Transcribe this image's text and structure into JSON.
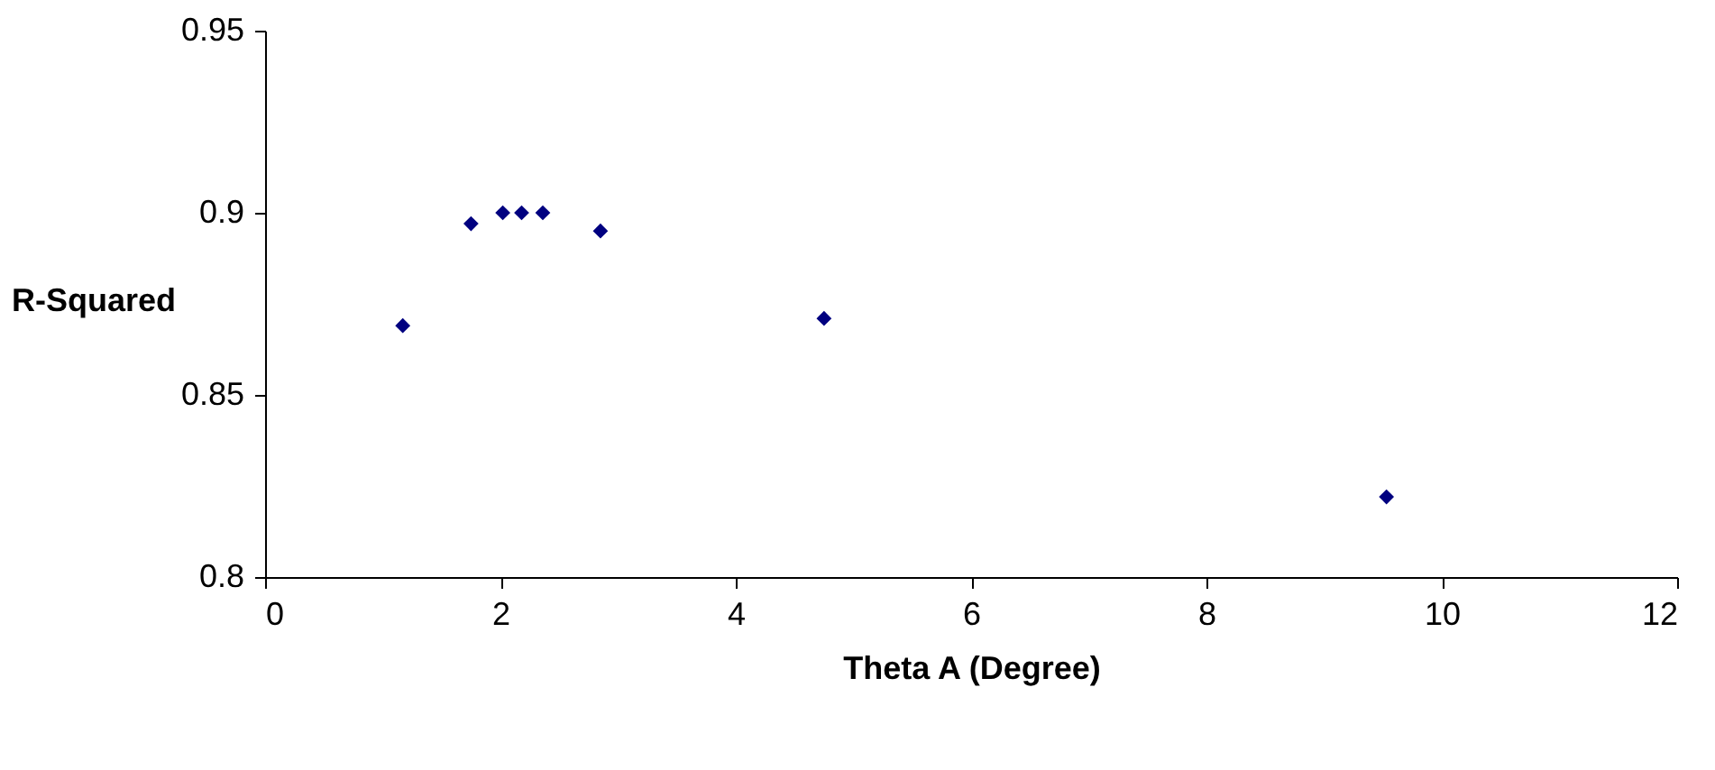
{
  "chart_data": {
    "type": "scatter",
    "xlabel": "Theta A (Degree)",
    "ylabel": "R-Squared",
    "x": [
      1.17,
      1.75,
      2.02,
      2.18,
      2.36,
      2.85,
      4.75,
      9.53
    ],
    "series": [
      {
        "color": "#000080",
        "values": [
          0.869,
          0.897,
          0.9,
          0.9,
          0.9,
          0.895,
          0.871,
          0.822
        ]
      }
    ],
    "xlim": [
      0,
      12
    ],
    "xticks": [
      0,
      2,
      4,
      6,
      8,
      10,
      12
    ],
    "ylim": [
      0.8,
      0.95
    ],
    "yticks": [
      {
        "value": 0.8,
        "label": "0.8"
      },
      0.85,
      {
        "value": 0.9,
        "label": "0.9"
      },
      0.95
    ],
    "grid": false,
    "legend": false,
    "marker": "diamond"
  }
}
